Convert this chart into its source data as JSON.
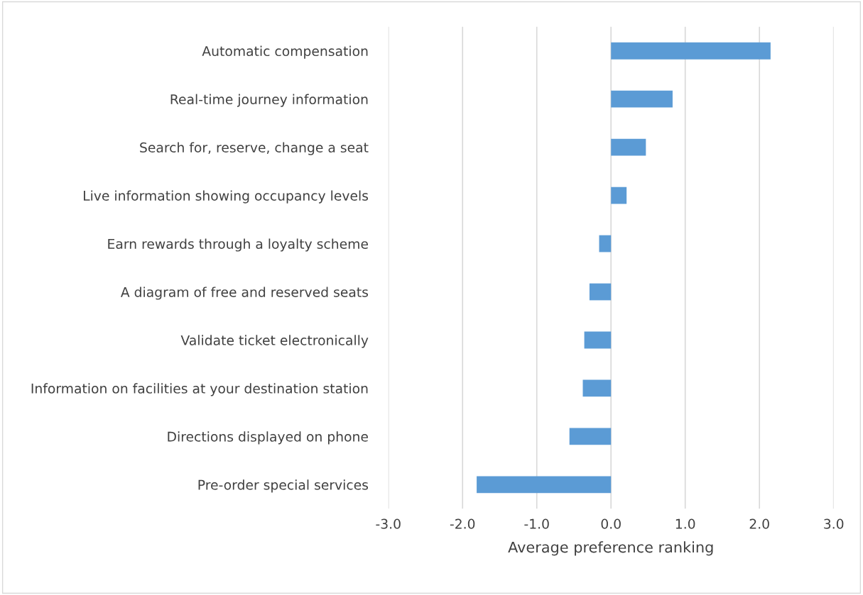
{
  "chart_data": {
    "type": "bar",
    "orientation": "horizontal",
    "xlabel": "Average preference ranking",
    "categories": [
      "Automatic compensation",
      "Real-time journey information",
      "Search for, reserve, change a seat",
      "Live information showing occupancy levels",
      "Earn rewards through a loyalty scheme",
      "A diagram of free and reserved seats",
      "Validate ticket electronically",
      "Information on facilities at your destination station",
      "Directions displayed on phone",
      "Pre-order special services"
    ],
    "values": [
      2.15,
      0.83,
      0.47,
      0.21,
      -0.16,
      -0.29,
      -0.36,
      -0.38,
      -0.56,
      -1.81
    ],
    "color": "#5b9bd5",
    "xlim": [
      -3,
      3
    ],
    "xticks": [
      {
        "value": -3,
        "label": "-3.0"
      },
      {
        "value": -2,
        "label": "-2.0"
      },
      {
        "value": -1,
        "label": "-1.0"
      },
      {
        "value": 0,
        "label": "0.0"
      },
      {
        "value": 1,
        "label": "1.0"
      },
      {
        "value": 2,
        "label": "2.0"
      },
      {
        "value": 3,
        "label": "3.0"
      }
    ],
    "grid": "x",
    "legend": false
  }
}
